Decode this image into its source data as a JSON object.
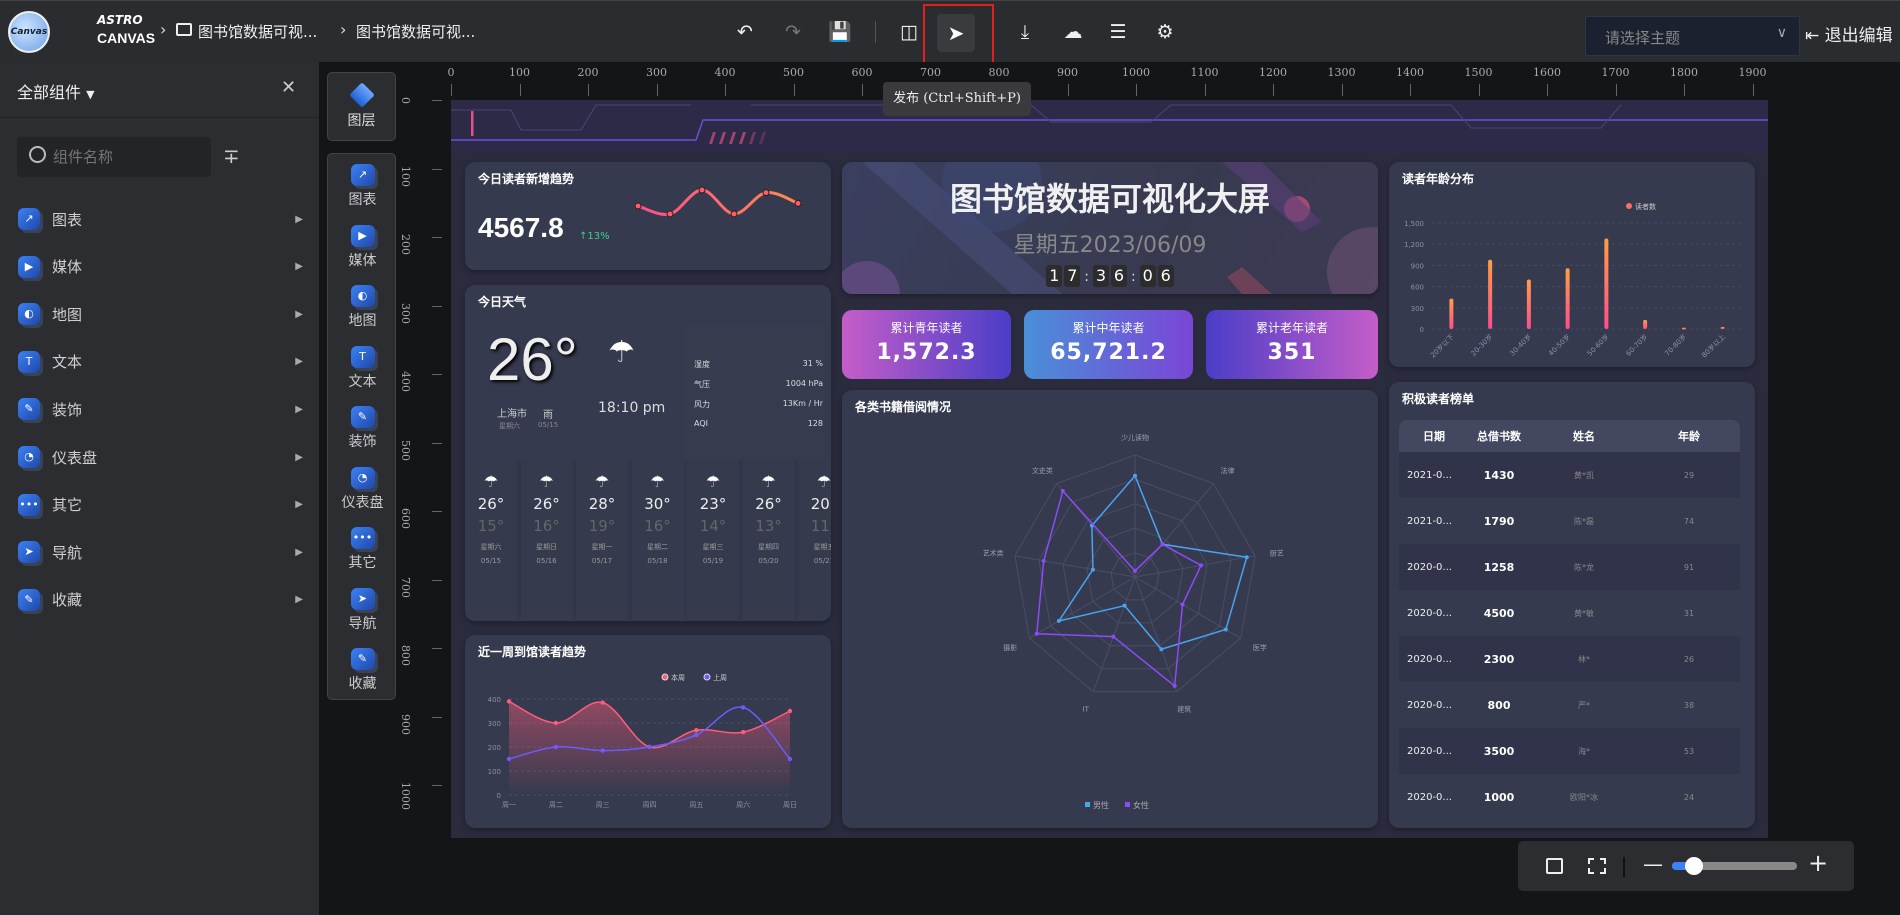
{
  "topbar": {
    "logo_top": "ASTRO",
    "logo_bottom": "CANVAS",
    "logo_badge": "Canvas",
    "breadcrumb": [
      "图书馆数据可视...",
      "图书馆数据可视..."
    ],
    "tools": [
      "undo-icon",
      "redo-icon",
      "save-icon",
      "preview-icon",
      "publish-icon",
      "download-icon",
      "cloud-upload-icon",
      "sliders-icon",
      "settings-icon"
    ],
    "tooltip": "发布 (Ctrl+Shift+P)",
    "theme_placeholder": "请选择主题",
    "exit_label": "退出编辑"
  },
  "sidebar": {
    "title": "全部组件",
    "search_placeholder": "组件名称",
    "items": [
      {
        "label": "图表",
        "icon": "chart-icon"
      },
      {
        "label": "媒体",
        "icon": "media-icon"
      },
      {
        "label": "地图",
        "icon": "map-icon"
      },
      {
        "label": "文本",
        "icon": "text-icon"
      },
      {
        "label": "装饰",
        "icon": "decoration-icon"
      },
      {
        "label": "仪表盘",
        "icon": "gauge-icon"
      },
      {
        "label": "其它",
        "icon": "more-icon"
      },
      {
        "label": "导航",
        "icon": "navigation-icon"
      },
      {
        "label": "收藏",
        "icon": "favorite-icon"
      }
    ]
  },
  "icon_panel": {
    "layers_label": "图层",
    "items": [
      "图表",
      "媒体",
      "地图",
      "文本",
      "装饰",
      "仪表盘",
      "其它",
      "导航",
      "收藏"
    ]
  },
  "ruler": {
    "top": [
      "0",
      "100",
      "200",
      "300",
      "400",
      "500",
      "600",
      "700",
      "800",
      "900",
      "1000",
      "1100",
      "1200",
      "1300",
      "1400",
      "1500",
      "1600",
      "1700",
      "1800",
      "1900"
    ],
    "left": [
      "0",
      "100",
      "200",
      "300",
      "400",
      "500",
      "600",
      "700",
      "800",
      "900",
      "1000"
    ]
  },
  "dashboard": {
    "new_readers": {
      "title": "今日读者新增趋势",
      "value": "4567.8",
      "change": "13%",
      "sparkline": [
        18,
        15,
        24,
        15,
        23,
        19
      ]
    },
    "weather": {
      "title": "今日天气",
      "temp": "26°",
      "city": "上海市",
      "condition": "雨",
      "weekday": "星期六",
      "date": "05/15",
      "time": "18:10 pm",
      "details": [
        {
          "k": "湿度",
          "v": "31 %"
        },
        {
          "k": "气压",
          "v": "1004 hPa"
        },
        {
          "k": "风力",
          "v": "13Km / Hr"
        },
        {
          "k": "AQI",
          "v": "128"
        }
      ],
      "forecast": [
        {
          "hi": "26°",
          "lo": "15°",
          "day": "星期六",
          "date": "05/15"
        },
        {
          "hi": "26°",
          "lo": "16°",
          "day": "星期日",
          "date": "05/16"
        },
        {
          "hi": "28°",
          "lo": "19°",
          "day": "星期一",
          "date": "05/17"
        },
        {
          "hi": "30°",
          "lo": "16°",
          "day": "星期二",
          "date": "05/18"
        },
        {
          "hi": "23°",
          "lo": "14°",
          "day": "星期三",
          "date": "05/19"
        },
        {
          "hi": "26°",
          "lo": "13°",
          "day": "星期四",
          "date": "05/20"
        },
        {
          "hi": "20°",
          "lo": "11°",
          "day": "星期五",
          "date": "05/21"
        }
      ]
    },
    "banner": {
      "title": "图书馆数据可视化大屏",
      "date": "星期五2023/06/09",
      "clock": [
        "1",
        "7",
        "3",
        "6",
        "0",
        "6"
      ]
    },
    "stats": [
      {
        "label": "累计青年读者",
        "value": "1,572.3"
      },
      {
        "label": "累计中年读者",
        "value": "65,721.2"
      },
      {
        "label": "累计老年读者",
        "value": "351"
      }
    ],
    "ranking": {
      "title": "积极读者榜单",
      "headers": [
        "日期",
        "总借书数",
        "姓名",
        "年龄"
      ],
      "rows": [
        [
          "2021-0...",
          "1430",
          "黄*凯",
          "29"
        ],
        [
          "2021-0...",
          "1790",
          "陈*磊",
          "74"
        ],
        [
          "2020-0...",
          "1258",
          "陈*龙",
          "91"
        ],
        [
          "2020-0...",
          "4500",
          "黄*敏",
          "31"
        ],
        [
          "2020-0...",
          "2300",
          "林*",
          "26"
        ],
        [
          "2020-0...",
          "800",
          "严*",
          "38"
        ],
        [
          "2020-0...",
          "3500",
          "海*",
          "53"
        ],
        [
          "2020-0...",
          "1000",
          "欧阳*冰",
          "24"
        ]
      ]
    }
  },
  "chart_data": [
    {
      "type": "bar",
      "title": "读者年龄分布",
      "categories": [
        "20岁以下",
        "20-30岁",
        "30-40岁",
        "40-50岁",
        "50-60岁",
        "60-70岁",
        "70-80岁",
        "80岁以上"
      ],
      "series": [
        {
          "name": "读者数",
          "values": [
            430,
            980,
            700,
            860,
            1280,
            130,
            20,
            30
          ]
        }
      ],
      "yticks": [
        "0",
        "300",
        "600",
        "900",
        "1,200",
        "1,500"
      ],
      "ylim": [
        0,
        1500
      ],
      "grid": true,
      "legend": "top-right",
      "colors": [
        "#ff9f43",
        "#ff4d8d"
      ]
    },
    {
      "type": "line",
      "title": "近一周到馆读者趋势",
      "categories": [
        "周一",
        "周二",
        "周三",
        "周四",
        "周五",
        "周六",
        "周日"
      ],
      "series": [
        {
          "name": "本周",
          "values": [
            390,
            300,
            385,
            200,
            270,
            262,
            350
          ],
          "color": "#ff5c7c"
        },
        {
          "name": "上周",
          "values": [
            150,
            200,
            185,
            200,
            250,
            365,
            150
          ],
          "color": "#6a5cff"
        }
      ],
      "yticks": [
        "0",
        "100",
        "200",
        "300",
        "400"
      ],
      "ylim": [
        0,
        400
      ],
      "grid": true,
      "legend": "top-right"
    },
    {
      "type": "radar",
      "title": "各类书籍借阅情况",
      "indicators": [
        "少儿读物",
        "法律",
        "厨艺",
        "医学",
        "建筑",
        "IT",
        "摄影",
        "艺术类",
        "文史类"
      ],
      "max": 100,
      "series": [
        {
          "name": "男性",
          "values": [
            83,
            35,
            93,
            86,
            63,
            25,
            72,
            35,
            55
          ],
          "color": "#4aa3f0"
        },
        {
          "name": "女性",
          "values": [
            5,
            35,
            55,
            45,
            95,
            52,
            93,
            76,
            92
          ],
          "color": "#8a4cf5"
        }
      ],
      "legend": "bottom"
    }
  ],
  "zoom_bar": {
    "level": 0.1
  }
}
